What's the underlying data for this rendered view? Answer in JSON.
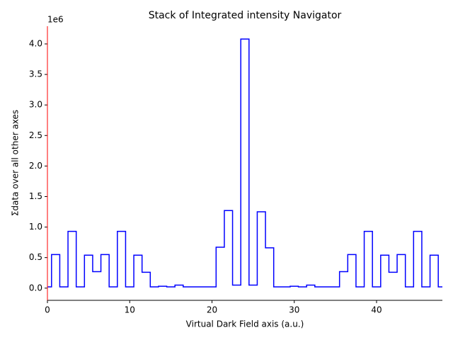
{
  "chart_data": {
    "type": "step",
    "title": "Stack of Integrated intensity Navigator",
    "xlabel": "Virtual Dark Field axis (a.u.)",
    "ylabel": "Σdata over all other axes",
    "y_offset_label": "1e6",
    "x": [
      0,
      1,
      2,
      3,
      4,
      5,
      6,
      7,
      8,
      9,
      10,
      11,
      12,
      13,
      14,
      15,
      16,
      17,
      18,
      19,
      20,
      21,
      22,
      23,
      24,
      25,
      26,
      27,
      28,
      29,
      30,
      31,
      32,
      33,
      34,
      35,
      36,
      37,
      38,
      39,
      40,
      41,
      42,
      43,
      44,
      45,
      46,
      47,
      48
    ],
    "series": [
      {
        "color": "#0000ff",
        "values": [
          0.02,
          0.55,
          0.02,
          0.93,
          0.02,
          0.54,
          0.27,
          0.55,
          0.02,
          0.93,
          0.02,
          0.54,
          0.26,
          0.02,
          0.03,
          0.02,
          0.05,
          0.02,
          0.02,
          0.02,
          0.02,
          0.67,
          1.27,
          0.05,
          4.08,
          0.05,
          1.25,
          0.66,
          0.02,
          0.02,
          0.03,
          0.02,
          0.05,
          0.02,
          0.02,
          0.02,
          0.27,
          0.55,
          0.02,
          0.93,
          0.02,
          0.54,
          0.26,
          0.55,
          0.02,
          0.93,
          0.02,
          0.54,
          0.02
        ]
      }
    ],
    "xlim": [
      0,
      48
    ],
    "ylim": [
      -0.2,
      4.29
    ],
    "xticks": [
      0,
      10,
      20,
      30,
      40
    ],
    "yticks": [
      {
        "value": 0,
        "label": "0.0"
      },
      0.5,
      {
        "value": 1,
        "label": "1.0"
      },
      1.5,
      {
        "value": 2,
        "label": "2.0"
      },
      2.5,
      {
        "value": 3,
        "label": "3.0"
      },
      3.5,
      {
        "value": 4,
        "label": "4.0"
      }
    ],
    "left_spine_color": "#ff0000",
    "step_where": "mid"
  }
}
